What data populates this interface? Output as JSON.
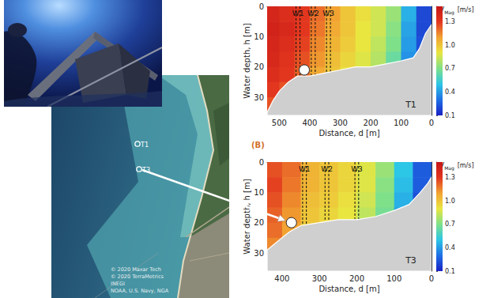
{
  "figure": {
    "panel_label": "(B)",
    "map": {
      "sites": [
        {
          "label": "T1"
        },
        {
          "label": "T3"
        }
      ],
      "attribution": [
        "© 2020 Maxar Tech",
        "© 2020 TerraMetrics",
        "INEGI",
        "NOAA, U.S. Navy, NGA"
      ]
    }
  },
  "chart_data": [
    {
      "type": "heatmap",
      "title": "T1",
      "x_label": "Distance, d [m]",
      "y_label": "Water depth, h [m]",
      "xlim": [
        540,
        0
      ],
      "xticks": [
        500,
        400,
        300,
        200,
        100,
        0
      ],
      "ylim": [
        36,
        0
      ],
      "yticks": [
        0,
        10,
        20,
        30
      ],
      "grid": false,
      "x_edges": [
        540,
        500,
        450,
        400,
        350,
        300,
        250,
        200,
        150,
        100,
        50,
        0
      ],
      "depth_edges": [
        0,
        5,
        10,
        15,
        20,
        25,
        30,
        36
      ],
      "values": [
        [
          1.4,
          1.35,
          1.3,
          1.2,
          1.1,
          1.0,
          0.92,
          0.85,
          0.75,
          0.45,
          0.2
        ],
        [
          1.42,
          1.38,
          1.3,
          1.18,
          1.08,
          1.0,
          0.9,
          0.85,
          0.72,
          0.42,
          0.2
        ],
        [
          1.4,
          1.35,
          1.28,
          1.15,
          1.05,
          0.98,
          0.9,
          0.82,
          0.7,
          0.4,
          0.22
        ],
        [
          1.38,
          1.32,
          1.25,
          1.12,
          1.02,
          0.95,
          0.88,
          0.8,
          0.65,
          0.38,
          0.2
        ],
        [
          1.35,
          1.3,
          1.22,
          1.08,
          1.0,
          0.92,
          0.85,
          0.75,
          0.6,
          0.35,
          0.2
        ],
        [
          1.3,
          1.25,
          1.18,
          1.05,
          0.95,
          0.9,
          0.8,
          0.7,
          0.55,
          0.3,
          0.2
        ],
        [
          1.25,
          1.2,
          1.15,
          1.0,
          0.9,
          0.85,
          0.75,
          0.65,
          0.5,
          0.3,
          0.2
        ]
      ],
      "colorbar": {
        "symbol": "V",
        "subscript": "Mag",
        "unit": "[m/s]",
        "lim": [
          0.1,
          1.5
        ],
        "ticks": [
          0.1,
          0.4,
          0.7,
          {
            "value": 1,
            "label": "1.0"
          },
          1.3
        ]
      },
      "seabed": {
        "x": [
          540,
          520,
          500,
          470,
          440,
          400,
          350,
          300,
          250,
          200,
          150,
          100,
          60,
          40,
          20,
          0
        ],
        "depth": [
          35,
          31,
          28,
          25,
          23,
          23,
          22,
          21,
          20,
          20,
          19,
          18,
          17,
          14,
          9,
          6
        ]
      },
      "windows": [
        {
          "label": "W1",
          "x": [
            445,
            432
          ]
        },
        {
          "label": "W2",
          "x": [
            395,
            382
          ]
        },
        {
          "label": "W3",
          "x": [
            345,
            332
          ]
        }
      ],
      "site": {
        "x": 418,
        "depth": 21
      }
    },
    {
      "type": "heatmap",
      "title": "T3",
      "x_label": "Distance, d [m]",
      "y_label": "Water depth, h [m]",
      "xlim": [
        440,
        0
      ],
      "xticks": [
        400,
        300,
        200,
        100,
        0
      ],
      "ylim": [
        36,
        0
      ],
      "yticks": [
        0,
        10,
        20,
        30
      ],
      "grid": false,
      "x_edges": [
        440,
        400,
        350,
        300,
        250,
        200,
        150,
        100,
        50,
        0
      ],
      "depth_edges": [
        0,
        5,
        10,
        15,
        20,
        25,
        30,
        36
      ],
      "values": [
        [
          1.25,
          1.2,
          1.05,
          1.0,
          0.95,
          0.88,
          0.75,
          0.5,
          0.25
        ],
        [
          1.28,
          1.18,
          1.05,
          1.0,
          0.95,
          0.88,
          0.72,
          0.48,
          0.25
        ],
        [
          1.25,
          1.15,
          1.02,
          0.98,
          0.92,
          0.85,
          0.7,
          0.45,
          0.22
        ],
        [
          1.22,
          1.12,
          1.0,
          0.95,
          0.9,
          0.82,
          0.68,
          0.42,
          0.22
        ],
        [
          1.2,
          1.1,
          0.98,
          0.92,
          0.88,
          0.8,
          0.65,
          0.4,
          0.2
        ],
        [
          1.15,
          1.05,
          0.95,
          0.9,
          0.85,
          0.78,
          0.6,
          0.38,
          0.2
        ],
        [
          1.1,
          1.0,
          0.92,
          0.88,
          0.82,
          0.75,
          0.58,
          0.35,
          0.2
        ]
      ],
      "colorbar": {
        "symbol": "V",
        "subscript": "Mag",
        "unit": "[m/s]",
        "lim": [
          0.1,
          1.5
        ],
        "ticks": [
          0.1,
          0.4,
          0.7,
          {
            "value": 1,
            "label": "1.0"
          },
          1.3
        ]
      },
      "seabed": {
        "x": [
          440,
          420,
          400,
          380,
          350,
          300,
          250,
          200,
          150,
          100,
          60,
          30,
          10,
          0
        ],
        "depth": [
          29,
          27,
          25,
          23,
          21,
          20,
          19,
          19,
          18,
          16,
          14,
          10,
          7,
          5
        ]
      },
      "windows": [
        {
          "label": "W1",
          "x": [
            345,
            335
          ]
        },
        {
          "label": "W2",
          "x": [
            285,
            275
          ]
        },
        {
          "label": "W3",
          "x": [
            205,
            195
          ]
        }
      ],
      "site": {
        "x": 375,
        "depth": 20
      }
    }
  ]
}
